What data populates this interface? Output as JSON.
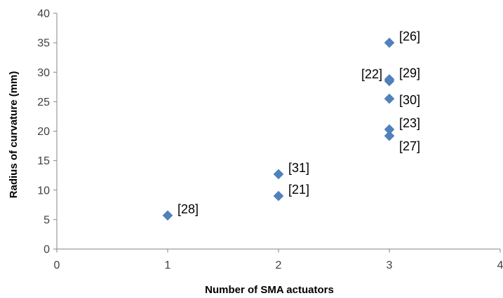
{
  "chart_data": {
    "type": "scatter",
    "title": "",
    "xlabel": "Number of SMA actuators",
    "ylabel": "Radius of curvature (mm)",
    "xlim": [
      0,
      4
    ],
    "ylim": [
      0,
      40
    ],
    "xticks": [
      0,
      1,
      2,
      3,
      4
    ],
    "yticks": [
      0,
      5,
      10,
      15,
      20,
      25,
      30,
      35,
      40
    ],
    "grid": false,
    "legend": "none",
    "marker_color": "#4f81bd",
    "points": [
      {
        "x": 1,
        "y": 5.7,
        "label": "[28]",
        "label_pos": "right-up"
      },
      {
        "x": 2,
        "y": 9.0,
        "label": "[21]",
        "label_pos": "right-up"
      },
      {
        "x": 2,
        "y": 12.7,
        "label": "[31]",
        "label_pos": "right-up"
      },
      {
        "x": 3,
        "y": 19.2,
        "label": "[27]",
        "label_pos": "right-down"
      },
      {
        "x": 3,
        "y": 20.3,
        "label": "[23]",
        "label_pos": "right-up"
      },
      {
        "x": 3,
        "y": 25.5,
        "label": "[30]",
        "label_pos": "right"
      },
      {
        "x": 3,
        "y": 28.5,
        "label": "[22]",
        "label_pos": "left-up"
      },
      {
        "x": 3,
        "y": 28.8,
        "label": "[29]",
        "label_pos": "right-up"
      },
      {
        "x": 3,
        "y": 35.0,
        "label": "[26]",
        "label_pos": "right-up"
      }
    ]
  }
}
